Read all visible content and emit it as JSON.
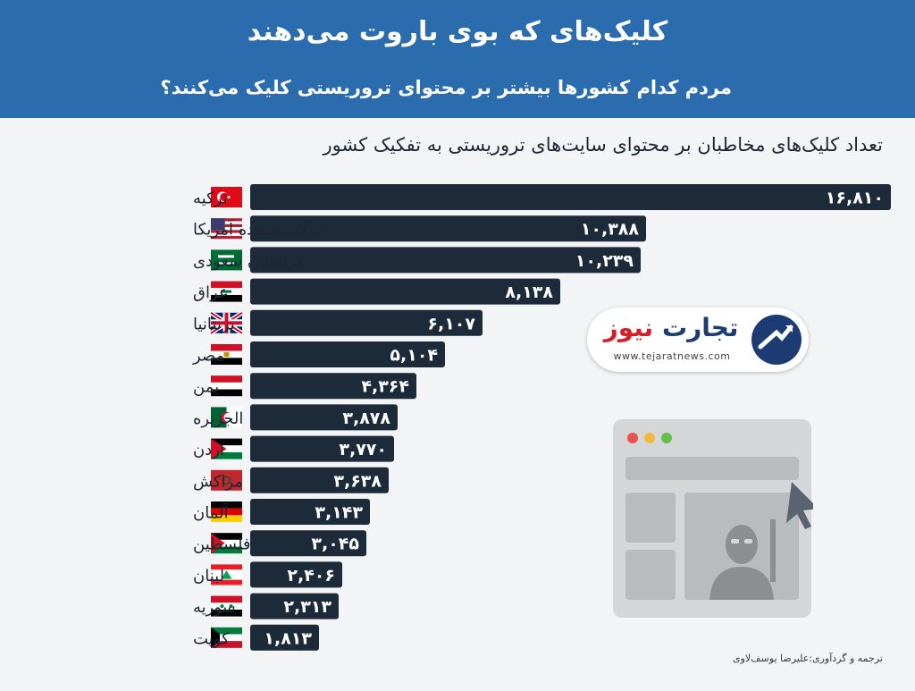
{
  "header": {
    "title": "کلیک‌های که بوی باروت می‌دهند",
    "subtitle": "مردم کدام کشورها بیشتر بر محتوای تروریستی کلیک می‌کنند؟"
  },
  "logo": {
    "name_part1": "تجارت",
    "name_part2": "نیوز",
    "url": "www.tejaratnews.com"
  },
  "credit": "ترجمه و گردآوری:علیرضا یوسف‌لاوی",
  "chart_data": {
    "type": "bar",
    "orientation": "horizontal",
    "title": "تعداد کلیک‌های مخاطبان بر محتوای سایت‌های تروریستی به تفکیک کشور",
    "categories": [
      "ترکیه",
      "ایالات متحده آمریکا",
      "عربستان سعودی",
      "عراق",
      "بریتانیا",
      "مصر",
      "یمن",
      "الجزیره",
      "اردن",
      "مراکش",
      "آلمان",
      "فلسطین",
      "لبنان",
      "سوریه",
      "کویت"
    ],
    "values": [
      16810,
      10388,
      10239,
      8138,
      6107,
      5104,
      4364,
      3878,
      3770,
      3638,
      3143,
      3045,
      2406,
      2313,
      1813
    ],
    "value_labels": [
      "۱۶,۸۱۰",
      "۱۰,۳۸۸",
      "۱۰,۲۳۹",
      "۸,۱۳۸",
      "۶,۱۰۷",
      "۵,۱۰۴",
      "۴,۳۶۴",
      "۳,۸۷۸",
      "۳,۷۷۰",
      "۳,۶۳۸",
      "۳,۱۴۳",
      "۳,۰۴۵",
      "۲,۴۰۶",
      "۲,۳۱۳",
      "۱,۸۱۳"
    ],
    "flags": [
      "turkey-flag-icon",
      "usa-flag-icon",
      "saudi-arabia-flag-icon",
      "iraq-flag-icon",
      "uk-flag-icon",
      "egypt-flag-icon",
      "yemen-flag-icon",
      "algeria-flag-icon",
      "jordan-flag-icon",
      "morocco-flag-icon",
      "germany-flag-icon",
      "palestine-flag-icon",
      "lebanon-flag-icon",
      "syria-flag-icon",
      "kuwait-flag-icon"
    ],
    "xlim": [
      0,
      16810
    ],
    "grid": false,
    "bar_color": "#1c2a3a"
  },
  "colors": {
    "header_bg": "#2b6cae",
    "background": "#f3f4f5"
  }
}
